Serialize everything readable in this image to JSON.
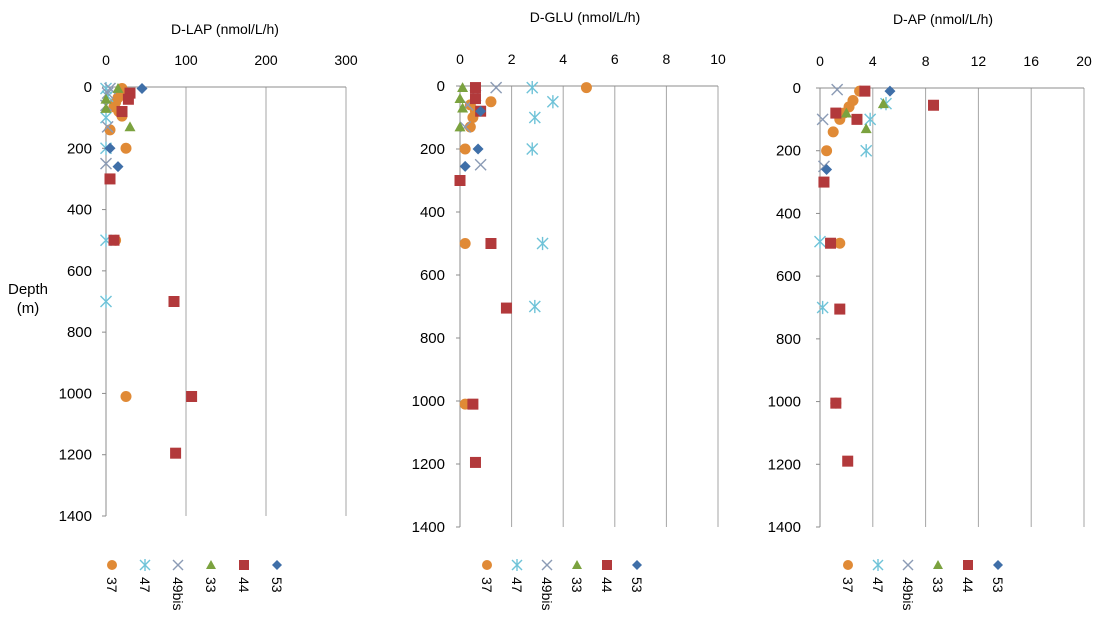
{
  "figure": {
    "depth_label_line1": "Depth",
    "depth_label_line2": "(m)"
  },
  "series_style": {
    "37": {
      "marker": "circle",
      "color": "#E08A36"
    },
    "47": {
      "marker": "star",
      "color": "#6FC3D8"
    },
    "49bis": {
      "marker": "x",
      "color": "#8B9BB5"
    },
    "33": {
      "marker": "triangle",
      "color": "#7BA23F"
    },
    "44": {
      "marker": "square",
      "color": "#B2393B"
    },
    "53": {
      "marker": "diamond",
      "color": "#3F6FA8"
    }
  },
  "chart_data": [
    {
      "type": "scatter",
      "title": "D-LAP (nmol/L/h)",
      "ylabel": "Depth (m)",
      "xlim": [
        0,
        300
      ],
      "xticks": [
        0,
        100,
        200,
        300
      ],
      "ylim": [
        0,
        1400
      ],
      "yticks": [
        0,
        200,
        400,
        600,
        800,
        1000,
        1200,
        1400
      ],
      "y_reversed": true,
      "grid": "vertical",
      "legend": "bottom",
      "series": [
        {
          "name": "37",
          "points": [
            [
              20,
              5
            ],
            [
              18,
              20
            ],
            [
              15,
              35
            ],
            [
              12,
              50
            ],
            [
              10,
              65
            ],
            [
              16,
              80
            ],
            [
              20,
              95
            ],
            [
              5,
              140
            ],
            [
              25,
              200
            ],
            [
              12,
              500
            ],
            [
              25,
              1010
            ]
          ]
        },
        {
          "name": "47",
          "points": [
            [
              0,
              5
            ],
            [
              2,
              30
            ],
            [
              0,
              100
            ],
            [
              0,
              200
            ],
            [
              0,
              500
            ],
            [
              0,
              700
            ]
          ]
        },
        {
          "name": "49bis",
          "points": [
            [
              5,
              5
            ],
            [
              2,
              20
            ],
            [
              0,
              60
            ],
            [
              2,
              130
            ],
            [
              0,
              250
            ]
          ]
        },
        {
          "name": "33",
          "points": [
            [
              15,
              5
            ],
            [
              0,
              40
            ],
            [
              0,
              70
            ],
            [
              30,
              130
            ]
          ]
        },
        {
          "name": "44",
          "points": [
            [
              30,
              20
            ],
            [
              28,
              40
            ],
            [
              20,
              80
            ],
            [
              5,
              300
            ],
            [
              10,
              500
            ],
            [
              85,
              700
            ],
            [
              107,
              1010
            ],
            [
              87,
              1195
            ]
          ]
        },
        {
          "name": "53",
          "points": [
            [
              45,
              5
            ],
            [
              5,
              200
            ],
            [
              15,
              260
            ]
          ]
        }
      ]
    },
    {
      "type": "scatter",
      "title": "D-GLU (nmol/L/h)",
      "ylabel": "Depth (m)",
      "xlim": [
        0,
        10
      ],
      "xticks": [
        0,
        2,
        4,
        6,
        8,
        10
      ],
      "ylim": [
        0,
        1400
      ],
      "yticks": [
        0,
        200,
        400,
        600,
        800,
        1000,
        1200,
        1400
      ],
      "y_reversed": true,
      "grid": "vertical",
      "legend": "bottom",
      "series": [
        {
          "name": "37",
          "points": [
            [
              4.9,
              5
            ],
            [
              1.2,
              50
            ],
            [
              0.4,
              60
            ],
            [
              0.6,
              80
            ],
            [
              0.5,
              100
            ],
            [
              0.4,
              130
            ],
            [
              0.2,
              200
            ],
            [
              0.2,
              500
            ],
            [
              0.2,
              1010
            ]
          ]
        },
        {
          "name": "47",
          "points": [
            [
              2.8,
              5
            ],
            [
              3.6,
              50
            ],
            [
              2.9,
              100
            ],
            [
              2.8,
              200
            ],
            [
              3.2,
              500
            ],
            [
              2.9,
              700
            ]
          ]
        },
        {
          "name": "49bis",
          "points": [
            [
              1.4,
              5
            ],
            [
              0.6,
              30
            ],
            [
              0.3,
              60
            ],
            [
              0.2,
              130
            ],
            [
              0.8,
              250
            ]
          ]
        },
        {
          "name": "33",
          "points": [
            [
              0.1,
              5
            ],
            [
              0.0,
              40
            ],
            [
              0.1,
              70
            ],
            [
              0.0,
              130
            ]
          ]
        },
        {
          "name": "44",
          "points": [
            [
              0.6,
              5
            ],
            [
              0.6,
              40
            ],
            [
              0.8,
              80
            ],
            [
              0.0,
              300
            ],
            [
              1.2,
              500
            ],
            [
              1.8,
              705
            ],
            [
              0.5,
              1010
            ],
            [
              0.6,
              1195
            ]
          ]
        },
        {
          "name": "53",
          "points": [
            [
              0.8,
              80
            ],
            [
              0.7,
              200
            ],
            [
              0.2,
              255
            ]
          ]
        }
      ]
    },
    {
      "type": "scatter",
      "title": "D-AP (nmol/L/h)",
      "ylabel": "Depth (m)",
      "xlim": [
        0,
        20
      ],
      "xticks": [
        0,
        4,
        8,
        12,
        16,
        20
      ],
      "ylim": [
        0,
        1400
      ],
      "yticks": [
        0,
        200,
        400,
        600,
        800,
        1000,
        1200,
        1400
      ],
      "y_reversed": true,
      "grid": "vertical",
      "legend": "bottom",
      "series": [
        {
          "name": "37",
          "points": [
            [
              3.0,
              10
            ],
            [
              2.5,
              40
            ],
            [
              2.2,
              60
            ],
            [
              1.8,
              80
            ],
            [
              1.5,
              100
            ],
            [
              1.0,
              140
            ],
            [
              0.5,
              200
            ],
            [
              1.5,
              495
            ],
            [
              1.2,
              1005
            ]
          ]
        },
        {
          "name": "47",
          "points": [
            [
              5.0,
              50
            ],
            [
              3.8,
              100
            ],
            [
              3.5,
              200
            ],
            [
              0.0,
              490
            ],
            [
              0.2,
              700
            ]
          ]
        },
        {
          "name": "49bis",
          "points": [
            [
              1.3,
              5
            ],
            [
              0.2,
              100
            ],
            [
              0.3,
              250
            ]
          ]
        },
        {
          "name": "33",
          "points": [
            [
              4.8,
              50
            ],
            [
              3.5,
              130
            ],
            [
              2.0,
              80
            ]
          ]
        },
        {
          "name": "44",
          "points": [
            [
              3.4,
              10
            ],
            [
              2.8,
              100
            ],
            [
              8.6,
              55
            ],
            [
              1.2,
              80
            ],
            [
              0.3,
              300
            ],
            [
              0.8,
              495
            ],
            [
              1.5,
              705
            ],
            [
              1.2,
              1005
            ],
            [
              2.1,
              1190
            ]
          ]
        },
        {
          "name": "53",
          "points": [
            [
              5.3,
              10
            ],
            [
              0.5,
              260
            ]
          ]
        }
      ]
    }
  ]
}
